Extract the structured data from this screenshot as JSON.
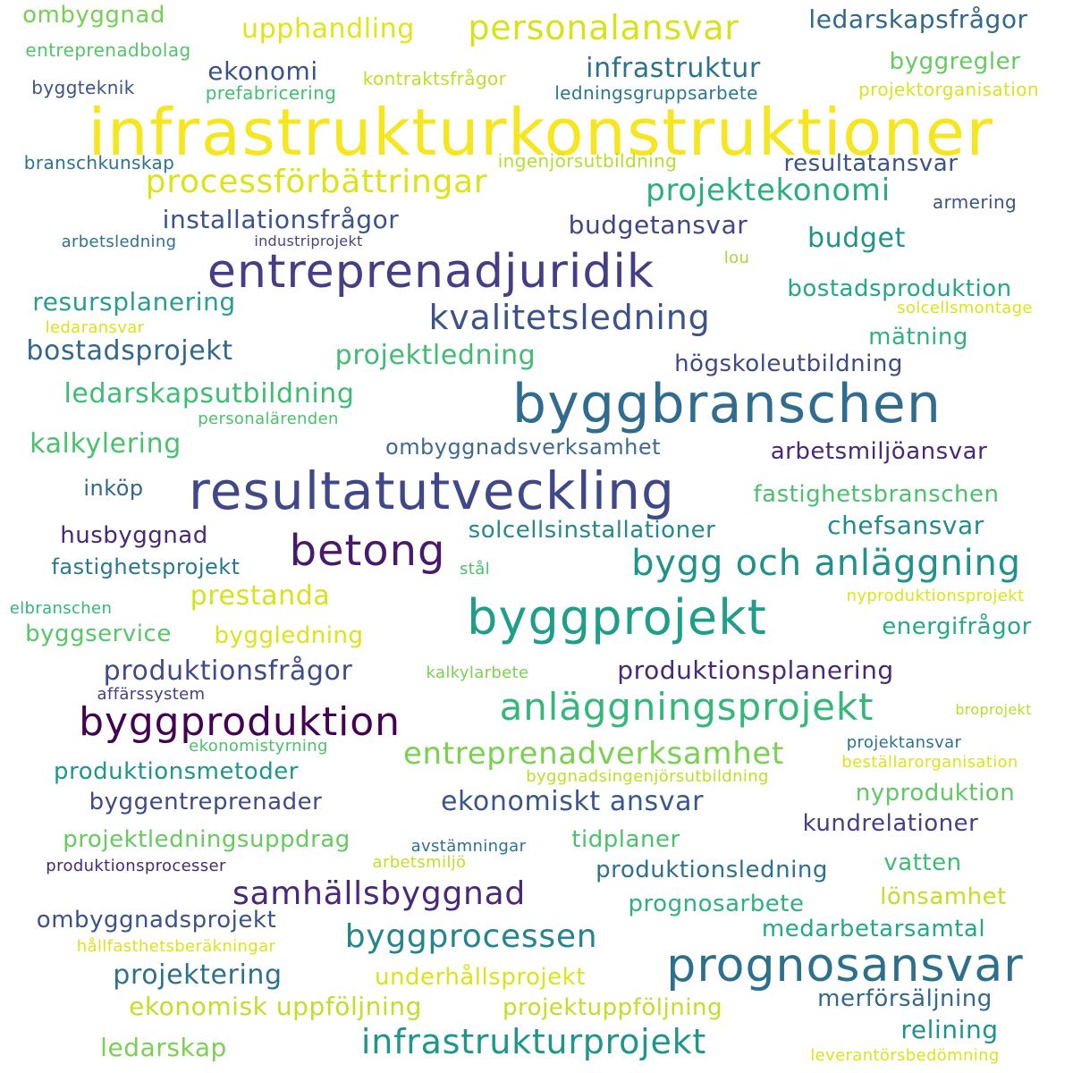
{
  "words": [
    {
      "text": "infrastrukturkonstruktioner",
      "color": "#f6e620"
    },
    {
      "text": "entreprenadjuridik",
      "color": "#433e85"
    },
    {
      "text": "byggbranschen",
      "color": "#2f6c8e"
    },
    {
      "text": "resultatutveckling",
      "color": "#3f4889"
    },
    {
      "text": "byggprojekt",
      "color": "#1f9e89"
    },
    {
      "text": "prognosansvar",
      "color": "#2d708e"
    },
    {
      "text": "byggproduktion",
      "color": "#440154"
    },
    {
      "text": "betong",
      "color": "#481a6c"
    },
    {
      "text": "bygg och anläggning",
      "color": "#20928c"
    },
    {
      "text": "anläggningsprojekt",
      "color": "#35b779"
    },
    {
      "text": "kvalitetsledning",
      "color": "#3b528b"
    },
    {
      "text": "processförbättringar",
      "color": "#dde318"
    },
    {
      "text": "personalansvar",
      "color": "#d8e219"
    },
    {
      "text": "infrastrukturprojekt",
      "color": "#1f968b"
    },
    {
      "text": "samhällsbyggnad",
      "color": "#482878"
    },
    {
      "text": "byggprocessen",
      "color": "#25858e"
    },
    {
      "text": "entreprenadverksamhet",
      "color": "#7ad151"
    },
    {
      "text": "projektekonomi",
      "color": "#29af7f"
    },
    {
      "text": "ekonomiskt ansvar",
      "color": "#39568c"
    },
    {
      "text": "produktionsfrågor",
      "color": "#3e4a89"
    },
    {
      "text": "upphandling",
      "color": "#e2e418"
    },
    {
      "text": "infrastruktur",
      "color": "#2c728e"
    },
    {
      "text": "ledarskapsutbildning",
      "color": "#3dbc74"
    },
    {
      "text": "projektledning",
      "color": "#40bd72"
    },
    {
      "text": "budget",
      "color": "#21918c"
    },
    {
      "text": "installationsfrågor",
      "color": "#3b528b"
    },
    {
      "text": "resultatansvar",
      "color": "#3b528b"
    },
    {
      "text": "budgetansvar",
      "color": "#3f4788"
    },
    {
      "text": "ledarskapsfrågor",
      "color": "#31688e"
    },
    {
      "text": "ekonomi",
      "color": "#3b528b"
    },
    {
      "text": "byggregler",
      "color": "#65cb5e"
    },
    {
      "text": "ombyggnad",
      "color": "#75d054"
    },
    {
      "text": "entreprenadbolag",
      "color": "#52c569"
    },
    {
      "text": "prefabricering",
      "color": "#42be71"
    },
    {
      "text": "kontraktsfrågor",
      "color": "#bddf26"
    },
    {
      "text": "ledningsgruppsarbete",
      "color": "#2a788e"
    },
    {
      "text": "projektorganisation",
      "color": "#dae319"
    },
    {
      "text": "byggteknik",
      "color": "#3b528b"
    },
    {
      "text": "ingenjörsutbildning",
      "color": "#b5de2b"
    },
    {
      "text": "branschkunskap",
      "color": "#2c728e"
    },
    {
      "text": "armering",
      "color": "#3b528b"
    },
    {
      "text": "arbetsledning",
      "color": "#2c728e"
    },
    {
      "text": "industriprojekt",
      "color": "#3f4788"
    },
    {
      "text": "lou",
      "color": "#a2da37"
    },
    {
      "text": "bostadsproduktion",
      "color": "#22a884"
    },
    {
      "text": "resursplanering",
      "color": "#2a9d8f"
    },
    {
      "text": "solcellsmontage",
      "color": "#dde318"
    },
    {
      "text": "ledaransvar",
      "color": "#dde318"
    },
    {
      "text": "bostadsprojekt",
      "color": "#31688e"
    },
    {
      "text": "mätning",
      "color": "#2db27d"
    },
    {
      "text": "högskoleutbildning",
      "color": "#3e4a89"
    },
    {
      "text": "personalärenden",
      "color": "#4ac16d"
    },
    {
      "text": "kalkylering",
      "color": "#4ac16d"
    },
    {
      "text": "ombyggnadsverksamhet",
      "color": "#3e6a8e"
    },
    {
      "text": "arbetsmiljöansvar",
      "color": "#482878"
    },
    {
      "text": "inköp",
      "color": "#31688e"
    },
    {
      "text": "fastighetsbranschen",
      "color": "#4ac16d"
    },
    {
      "text": "husbyggnad",
      "color": "#482878"
    },
    {
      "text": "solcellsinstallationer",
      "color": "#23898e"
    },
    {
      "text": "chefsansvar",
      "color": "#23898e"
    },
    {
      "text": "fastighetsprojekt",
      "color": "#29798e"
    },
    {
      "text": "stål",
      "color": "#4ac16d"
    },
    {
      "text": "prestanda",
      "color": "#d8e219"
    },
    {
      "text": "nyproduktionsprojekt",
      "color": "#dde318"
    },
    {
      "text": "elbranschen",
      "color": "#32b67a"
    },
    {
      "text": "byggservice",
      "color": "#56c667"
    },
    {
      "text": "byggledning",
      "color": "#dde318"
    },
    {
      "text": "energifrågor",
      "color": "#23a983"
    },
    {
      "text": "produktionsplanering",
      "color": "#482878"
    },
    {
      "text": "kalkylarbete",
      "color": "#7ad151"
    },
    {
      "text": "affärssystem",
      "color": "#433e85"
    },
    {
      "text": "broprojekt",
      "color": "#b5de2b"
    },
    {
      "text": "ekonomistyrning",
      "color": "#4ac16d"
    },
    {
      "text": "projektansvar",
      "color": "#2c728e"
    },
    {
      "text": "beställarorganisation",
      "color": "#dde318"
    },
    {
      "text": "produktionsmetoder",
      "color": "#1f968b"
    },
    {
      "text": "byggnadsingenjörsutbildning",
      "color": "#bddf26"
    },
    {
      "text": "nyproduktion",
      "color": "#5ec962"
    },
    {
      "text": "byggentreprenader",
      "color": "#3e4a89"
    },
    {
      "text": "kundrelationer",
      "color": "#433e85"
    },
    {
      "text": "projektledningsuppdrag",
      "color": "#65cb5e"
    },
    {
      "text": "avstämningar",
      "color": "#2c728e"
    },
    {
      "text": "tidplaner",
      "color": "#4ac16d"
    },
    {
      "text": "produktionsprocesser",
      "color": "#482878"
    },
    {
      "text": "arbetsmiljö",
      "color": "#c0df25"
    },
    {
      "text": "produktionsledning",
      "color": "#2c728e"
    },
    {
      "text": "vatten",
      "color": "#3dbc74"
    },
    {
      "text": "lönsamhet",
      "color": "#c0df25"
    },
    {
      "text": "prognosarbete",
      "color": "#2db27d"
    },
    {
      "text": "ombyggnadsprojekt",
      "color": "#3b528b"
    },
    {
      "text": "medarbetarsamtal",
      "color": "#23a983"
    },
    {
      "text": "hållfasthetsberäkningar",
      "color": "#dde318"
    },
    {
      "text": "projektering",
      "color": "#2c728e"
    },
    {
      "text": "underhållsprojekt",
      "color": "#dde318"
    },
    {
      "text": "merförsäljning",
      "color": "#31688e"
    },
    {
      "text": "ekonomisk uppföljning",
      "color": "#c0df25"
    },
    {
      "text": "projektuppföljning",
      "color": "#c0df25"
    },
    {
      "text": "relining",
      "color": "#21918c"
    },
    {
      "text": "ledarskap",
      "color": "#7ad151"
    },
    {
      "text": "leverantörsbedömning",
      "color": "#dde318"
    }
  ]
}
